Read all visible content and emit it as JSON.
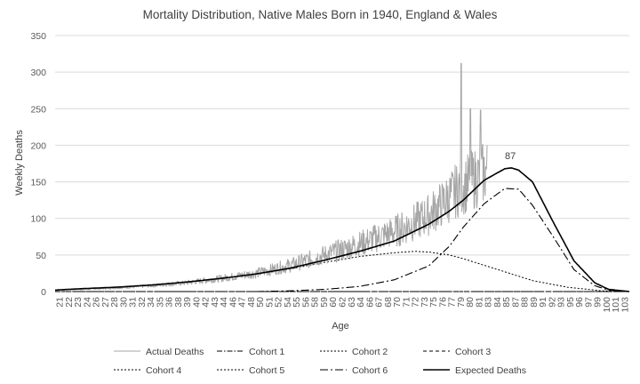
{
  "chart_data": {
    "type": "line",
    "title": "Mortality Distribution, Native Males Born in 1940, England & Wales",
    "xlabel": "Age",
    "ylabel": "Weekly Deaths",
    "xlim": [
      21,
      104
    ],
    "ylim": [
      0,
      350
    ],
    "y_ticks": [
      0,
      50,
      100,
      150,
      200,
      250,
      300,
      350
    ],
    "x_tick_labels": [
      "21",
      "22",
      "23",
      "24",
      "26",
      "27",
      "28",
      "30",
      "31",
      "32",
      "34",
      "35",
      "36",
      "38",
      "39",
      "40",
      "42",
      "43",
      "44",
      "46",
      "47",
      "48",
      "50",
      "51",
      "52",
      "54",
      "55",
      "56",
      "58",
      "59",
      "60",
      "62",
      "63",
      "64",
      "66",
      "67",
      "68",
      "70",
      "71",
      "72",
      "73",
      "75",
      "76",
      "77",
      "79",
      "80",
      "81",
      "83",
      "84",
      "85",
      "87",
      "88",
      "89",
      "91",
      "92",
      "93",
      "95",
      "96",
      "97",
      "99",
      "100",
      "101",
      "103"
    ],
    "grid": "horizontal",
    "legend_position": "bottom",
    "annotation": {
      "text": "87",
      "x": 86.8,
      "y": 169
    },
    "series": [
      {
        "name": "Actual Deaths",
        "style": "gray-noisy",
        "x": [
          21,
          25,
          30,
          35,
          40,
          45,
          50,
          55,
          60,
          65,
          70,
          72,
          75,
          77,
          79,
          79.7,
          80,
          81,
          82,
          82.5,
          83,
          83.5
        ],
        "values": [
          2,
          3,
          5,
          8,
          12,
          18,
          25,
          36,
          50,
          65,
          82,
          90,
          105,
          120,
          138,
          312,
          150,
          250,
          145,
          248,
          165,
          150
        ]
      },
      {
        "name": "Cohort 1",
        "style": "dash-dot",
        "x": [
          21,
          40,
          60,
          80,
          100,
          104
        ],
        "values": [
          0,
          0,
          0,
          0,
          0,
          0
        ]
      },
      {
        "name": "Cohort 2",
        "style": "dotted",
        "x": [
          21,
          40,
          60,
          80,
          100,
          104
        ],
        "values": [
          0,
          0,
          0,
          0,
          0,
          0
        ]
      },
      {
        "name": "Cohort 3",
        "style": "dashed",
        "x": [
          21,
          40,
          60,
          80,
          100,
          104
        ],
        "values": [
          0,
          0,
          0,
          0,
          0,
          0
        ]
      },
      {
        "name": "Cohort 4",
        "style": "dotted",
        "x": [
          21,
          40,
          60,
          80,
          100,
          104
        ],
        "values": [
          0,
          0,
          0,
          0,
          0,
          0
        ]
      },
      {
        "name": "Cohort 5",
        "style": "dotted",
        "x": [
          21,
          25,
          30,
          35,
          40,
          45,
          50,
          55,
          60,
          65,
          70,
          73,
          75,
          78,
          80,
          85,
          90,
          95,
          100,
          104
        ],
        "values": [
          2,
          4,
          6,
          9,
          13,
          18,
          24,
          31,
          40,
          48,
          53,
          55,
          54,
          50,
          45,
          30,
          15,
          6,
          1,
          0
        ]
      },
      {
        "name": "Cohort 6",
        "style": "long-dash-dot",
        "x": [
          50,
          55,
          60,
          65,
          70,
          75,
          78,
          80,
          83,
          86,
          88,
          90,
          93,
          96,
          99,
          101,
          104
        ],
        "values": [
          0,
          1,
          3,
          7,
          16,
          35,
          62,
          88,
          120,
          141,
          140,
          118,
          75,
          30,
          8,
          2,
          0
        ]
      },
      {
        "name": "Expected Deaths",
        "style": "solid-black",
        "x": [
          21,
          25,
          30,
          35,
          40,
          45,
          50,
          55,
          60,
          65,
          70,
          75,
          78,
          80,
          83,
          86,
          87,
          88,
          90,
          93,
          96,
          99,
          101,
          104
        ],
        "values": [
          2,
          4,
          6,
          9,
          13,
          18,
          24,
          32,
          43,
          55,
          69,
          92,
          110,
          125,
          152,
          168,
          169,
          166,
          150,
          95,
          42,
          12,
          3,
          0
        ]
      }
    ]
  }
}
